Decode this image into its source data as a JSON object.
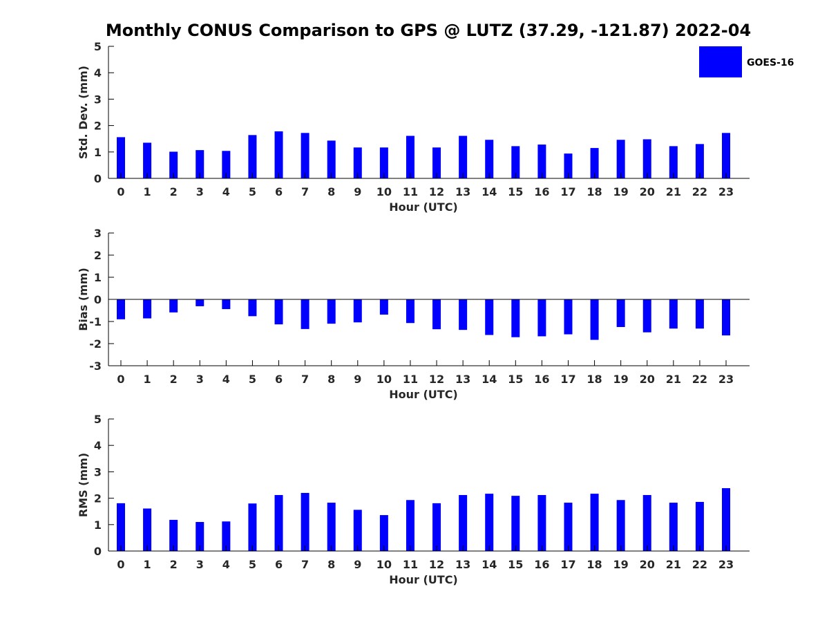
{
  "figure": {
    "title": "Monthly CONUS Comparison to GPS @ LUTZ (37.29, -121.87) 2022-04",
    "bar_color": "#0000ff",
    "axis_color": "#000000",
    "tick_label_color": "#262626"
  },
  "legend": {
    "label": "GOES-16",
    "placement": "top-right",
    "color": "#0000ff"
  },
  "chart_data": [
    {
      "type": "bar",
      "xlabel": "Hour (UTC)",
      "ylabel": "Std. Dev. (mm)",
      "ylim": [
        0,
        5
      ],
      "yticks": [
        0,
        1,
        2,
        3,
        4,
        5
      ],
      "categories": [
        "0",
        "1",
        "2",
        "3",
        "4",
        "5",
        "6",
        "7",
        "8",
        "9",
        "10",
        "11",
        "12",
        "13",
        "14",
        "15",
        "16",
        "17",
        "18",
        "19",
        "20",
        "21",
        "22",
        "23"
      ],
      "series": [
        {
          "name": "GOES-16",
          "values": [
            1.56,
            1.35,
            1.01,
            1.07,
            1.04,
            1.64,
            1.78,
            1.72,
            1.43,
            1.17,
            1.17,
            1.61,
            1.17,
            1.61,
            1.46,
            1.22,
            1.28,
            0.94,
            1.15,
            1.46,
            1.48,
            1.22,
            1.3,
            1.72
          ]
        }
      ],
      "grid": false
    },
    {
      "type": "bar",
      "xlabel": "Hour (UTC)",
      "ylabel": "Bias (mm)",
      "ylim": [
        -3,
        3
      ],
      "yticks": [
        -3,
        -2,
        -1,
        0,
        1,
        2,
        3
      ],
      "categories": [
        "0",
        "1",
        "2",
        "3",
        "4",
        "5",
        "6",
        "7",
        "8",
        "9",
        "10",
        "11",
        "12",
        "13",
        "14",
        "15",
        "16",
        "17",
        "18",
        "19",
        "20",
        "21",
        "22",
        "23"
      ],
      "series": [
        {
          "values": [
            -0.9,
            -0.86,
            -0.59,
            -0.31,
            -0.44,
            -0.76,
            -1.13,
            -1.34,
            -1.1,
            -1.04,
            -0.69,
            -1.07,
            -1.35,
            -1.38,
            -1.61,
            -1.71,
            -1.67,
            -1.58,
            -1.83,
            -1.25,
            -1.49,
            -1.32,
            -1.32,
            -1.63
          ]
        }
      ],
      "grid": false
    },
    {
      "type": "bar",
      "xlabel": "Hour (UTC)",
      "ylabel": "RMS (mm)",
      "ylim": [
        0,
        5
      ],
      "yticks": [
        0,
        1,
        2,
        3,
        4,
        5
      ],
      "categories": [
        "0",
        "1",
        "2",
        "3",
        "4",
        "5",
        "6",
        "7",
        "8",
        "9",
        "10",
        "11",
        "12",
        "13",
        "14",
        "15",
        "16",
        "17",
        "18",
        "19",
        "20",
        "21",
        "22",
        "23"
      ],
      "series": [
        {
          "values": [
            1.81,
            1.61,
            1.18,
            1.1,
            1.12,
            1.8,
            2.12,
            2.2,
            1.83,
            1.56,
            1.36,
            1.93,
            1.81,
            2.12,
            2.17,
            2.09,
            2.12,
            1.83,
            2.17,
            1.93,
            2.12,
            1.83,
            1.86,
            2.38
          ]
        }
      ],
      "grid": false
    }
  ]
}
